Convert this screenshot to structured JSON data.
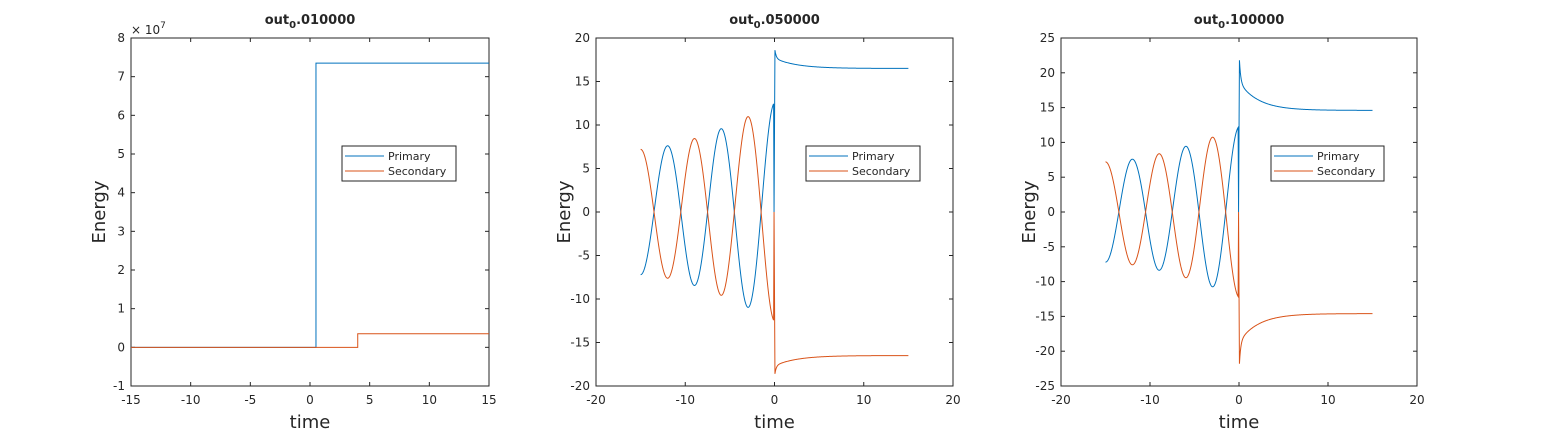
{
  "colors": {
    "primary": "#0072BD",
    "secondary": "#D95319",
    "axis": "#262626",
    "background": "#ffffff"
  },
  "chart_data": [
    {
      "type": "line",
      "title_main": "out",
      "title_sub": "0",
      "title_rest": ".010000",
      "xlabel": "time",
      "ylabel": "Energy",
      "xlim": [
        -15,
        15
      ],
      "ylim": [
        -1,
        8
      ],
      "y_scale_label": "7",
      "y_scale_base": "× 10",
      "xticks": [
        -15,
        -10,
        -5,
        0,
        5,
        10,
        15
      ],
      "yticks": [
        -1,
        0,
        1,
        2,
        3,
        4,
        5,
        6,
        7,
        8
      ],
      "xtick_labels": [
        "-15",
        "-10",
        "-5",
        "0",
        "5",
        "10",
        "15"
      ],
      "ytick_labels": [
        "-1",
        "0",
        "1",
        "2",
        "3",
        "4",
        "5",
        "6",
        "7",
        "8"
      ],
      "grid": false,
      "legend": {
        "position": "middle-right",
        "entries": [
          "Primary",
          "Secondary"
        ]
      },
      "series": [
        {
          "name": "Primary",
          "color": "primary",
          "shape": "step",
          "points": [
            [
              -15,
              0
            ],
            [
              0.5,
              0
            ],
            [
              0.5,
              7.35
            ],
            [
              15,
              7.35
            ]
          ]
        },
        {
          "name": "Secondary",
          "color": "secondary",
          "shape": "step",
          "points": [
            [
              -15,
              0
            ],
            [
              4,
              0
            ],
            [
              4,
              0.35
            ],
            [
              15,
              0.35
            ]
          ]
        }
      ]
    },
    {
      "type": "line",
      "title_main": "out",
      "title_sub": "0",
      "title_rest": ".050000",
      "xlabel": "time",
      "ylabel": "Energy",
      "xlim": [
        -20,
        20
      ],
      "ylim": [
        -20,
        20
      ],
      "xticks": [
        -20,
        -10,
        0,
        10,
        20
      ],
      "yticks": [
        -20,
        -15,
        -10,
        -5,
        0,
        5,
        10,
        15,
        20
      ],
      "xtick_labels": [
        "-20",
        "-10",
        "0",
        "10",
        "20"
      ],
      "ytick_labels": [
        "-20",
        "-15",
        "-10",
        "-5",
        "0",
        "5",
        "10",
        "15",
        "20"
      ],
      "grid": false,
      "legend": {
        "position": "middle-right",
        "entries": [
          "Primary",
          "Secondary"
        ]
      },
      "oscillation": {
        "t_start": -15,
        "t_peak": -0.1,
        "amp_start": 7.2,
        "amp_end": 12.5,
        "period": 6,
        "phase_start_value": -7.2
      },
      "decay": {
        "t_end": 15,
        "peak": 18.6,
        "asymptote": 16.5,
        "tau": 2.5
      },
      "series": [
        {
          "name": "Primary",
          "color": "primary",
          "sign": 1
        },
        {
          "name": "Secondary",
          "color": "secondary",
          "sign": -1
        }
      ]
    },
    {
      "type": "line",
      "title_main": "out",
      "title_sub": "0",
      "title_rest": ".100000",
      "xlabel": "time",
      "ylabel": "Energy",
      "xlim": [
        -20,
        20
      ],
      "ylim": [
        -25,
        25
      ],
      "xticks": [
        -20,
        -10,
        0,
        10,
        20
      ],
      "yticks": [
        -25,
        -20,
        -15,
        -10,
        -5,
        0,
        5,
        10,
        15,
        20,
        25
      ],
      "xtick_labels": [
        "-20",
        "-10",
        "0",
        "10",
        "20"
      ],
      "ytick_labels": [
        "-25",
        "-20",
        "-15",
        "-10",
        "-5",
        "0",
        "5",
        "10",
        "15",
        "20",
        "25"
      ],
      "grid": false,
      "legend": {
        "position": "middle-right",
        "entries": [
          "Primary",
          "Secondary"
        ]
      },
      "oscillation": {
        "t_start": -15,
        "t_peak": -0.1,
        "amp_start": 7.2,
        "amp_end": 12.2,
        "period": 6,
        "phase_start_value": -7.2
      },
      "decay": {
        "t_end": 15,
        "peak": 21.8,
        "asymptote": 14.6,
        "tau": 2.2
      },
      "series": [
        {
          "name": "Primary",
          "color": "primary",
          "sign": 1
        },
        {
          "name": "Secondary",
          "color": "secondary",
          "sign": -1
        }
      ]
    }
  ]
}
